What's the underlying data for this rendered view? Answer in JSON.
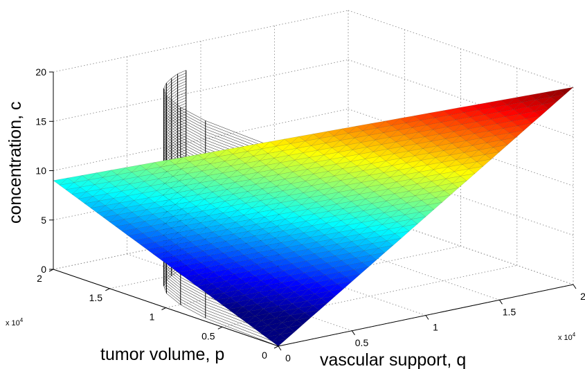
{
  "chart_data": {
    "type": "surface3d",
    "title": "",
    "xlabel": "vascular support, q",
    "ylabel": "tumor volume, p",
    "zlabel": "concentration, c",
    "xlim": [
      0,
      20000
    ],
    "ylim": [
      0,
      20000
    ],
    "zlim": [
      0,
      20
    ],
    "x_ticks": [
      "0",
      "0.5",
      "1",
      "1.5",
      "2"
    ],
    "y_ticks": [
      "0",
      "0.5",
      "1",
      "1.5",
      "2"
    ],
    "z_ticks": [
      "0",
      "5",
      "10",
      "15",
      "20"
    ],
    "x_exponent": "x 10",
    "y_exponent": "x 10",
    "exponent_power": "4",
    "grid": true,
    "colormap": "jet",
    "surface": {
      "description_vertices": [
        {
          "q": 0,
          "p": 20000,
          "c": 9
        },
        {
          "q": 0,
          "p": 0,
          "c": 0
        },
        {
          "q": 20000,
          "p": 0,
          "c": 20
        }
      ]
    },
    "mesh_surface": {
      "curve_q": [
        0,
        400,
        1000,
        1800,
        2600,
        3400,
        4200,
        5000,
        5800
      ],
      "curve_p": [
        0,
        7000,
        10000,
        12300,
        13600,
        14400,
        15000,
        15500,
        15800
      ],
      "c_range": [
        0,
        20
      ]
    }
  }
}
